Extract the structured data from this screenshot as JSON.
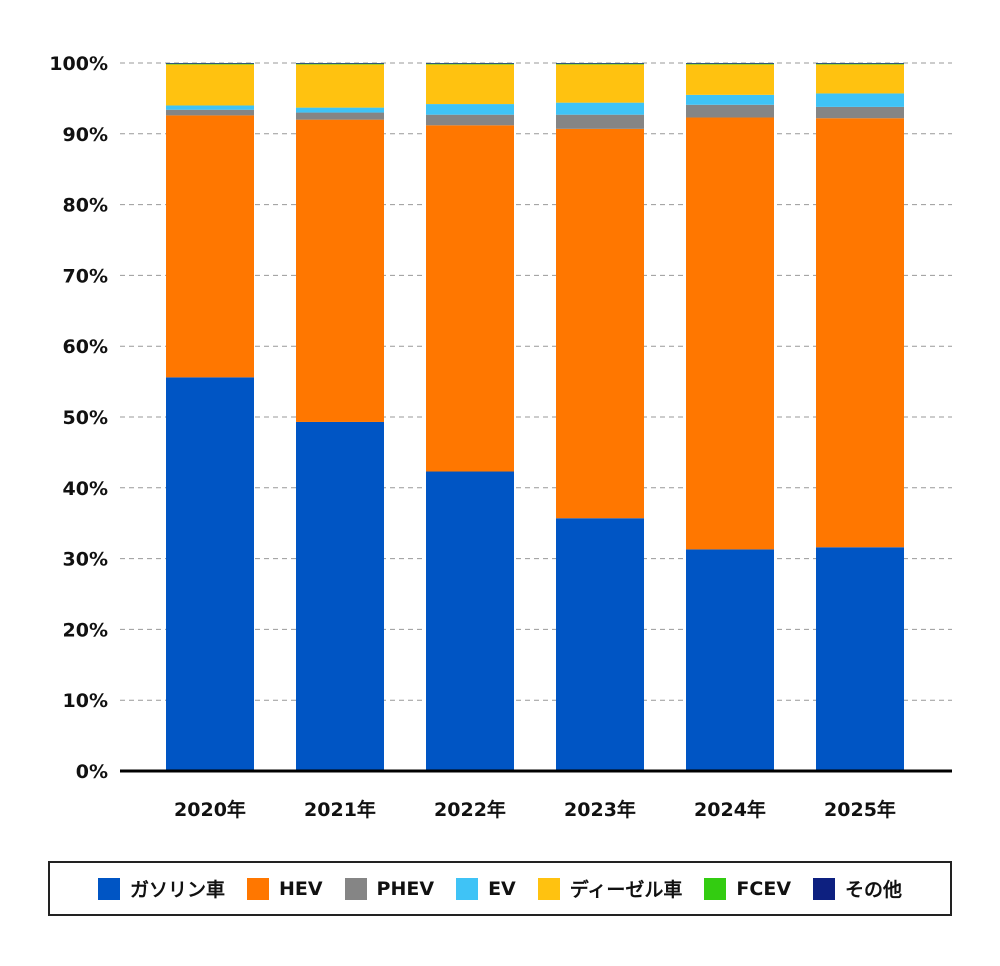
{
  "chart_data": {
    "type": "bar",
    "stacked": true,
    "categories": [
      "2020年",
      "2021年",
      "2022年",
      "2023年",
      "2024年",
      "2025年"
    ],
    "series": [
      {
        "name": "ガソリン車",
        "color": "#0055c4",
        "values": [
          55.6,
          49.3,
          42.3,
          35.7,
          31.3,
          31.6
        ]
      },
      {
        "name": "HEV",
        "color": "#ff7700",
        "values": [
          37.0,
          42.7,
          48.9,
          55.0,
          61.0,
          60.6
        ]
      },
      {
        "name": "PHEV",
        "color": "#858585",
        "values": [
          0.8,
          1.0,
          1.5,
          2.0,
          1.8,
          1.6
        ]
      },
      {
        "name": "EV",
        "color": "#3fc3f6",
        "values": [
          0.6,
          0.7,
          1.5,
          1.7,
          1.4,
          1.9
        ]
      },
      {
        "name": "ディーゼル車",
        "color": "#ffc210",
        "values": [
          5.8,
          6.1,
          5.6,
          5.4,
          4.3,
          4.1
        ]
      },
      {
        "name": "FCEV",
        "color": "#33cc11",
        "values": [
          0.1,
          0.1,
          0.1,
          0.1,
          0.1,
          0.1
        ]
      },
      {
        "name": "その他",
        "color": "#0d2080",
        "values": [
          0.1,
          0.1,
          0.1,
          0.1,
          0.1,
          0.1
        ]
      }
    ],
    "yticks": [
      "0%",
      "10%",
      "20%",
      "30%",
      "40%",
      "50%",
      "60%",
      "70%",
      "80%",
      "90%",
      "100%"
    ],
    "ylim": [
      0,
      100
    ],
    "grid": true,
    "legend_position": "bottom"
  }
}
